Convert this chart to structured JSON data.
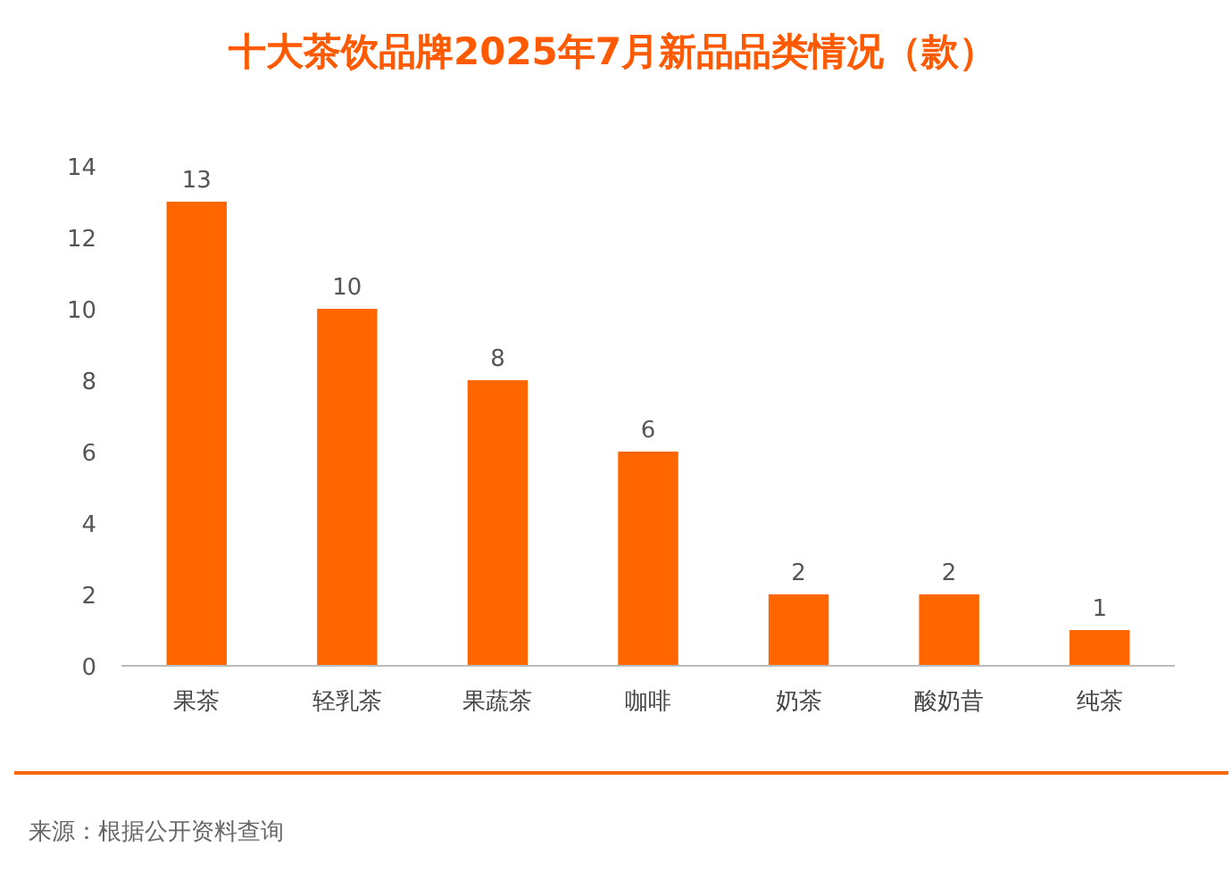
{
  "chart_data": {
    "type": "bar",
    "title": "十大茶饮品牌2025年7月新品品类情况（款）",
    "categories": [
      "果茶",
      "轻乳茶",
      "果蔬茶",
      "咖啡",
      "奶茶",
      "酸奶昔",
      "纯茶"
    ],
    "values": [
      13,
      10,
      8,
      6,
      2,
      2,
      1
    ],
    "color": "#ff6600",
    "ylim": [
      0,
      14
    ],
    "yticks": [
      0,
      2,
      4,
      6,
      8,
      10,
      12,
      14
    ],
    "grid": false,
    "data_labels": true,
    "annotations": [
      "来源：根据公开资料查询"
    ]
  }
}
